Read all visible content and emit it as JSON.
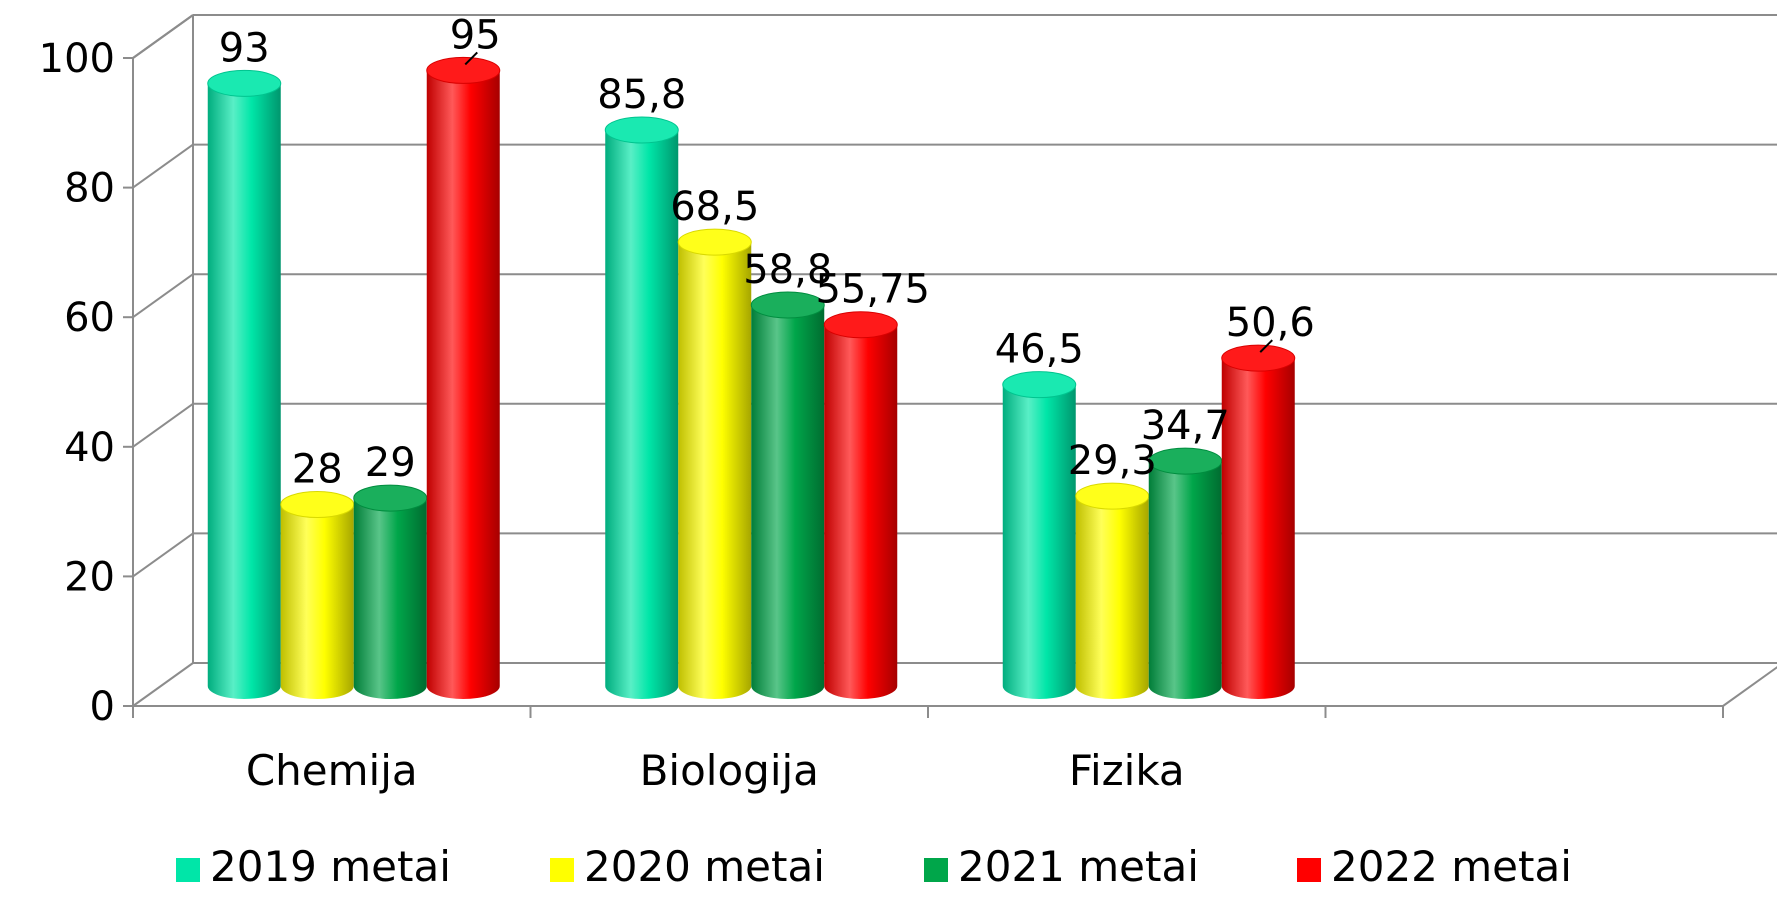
{
  "chart_data": {
    "type": "bar",
    "title": "",
    "xlabel": "",
    "ylabel": "",
    "ylim": [
      0,
      100
    ],
    "yticks": [
      "0",
      "20",
      "40",
      "60",
      "80",
      "100"
    ],
    "grid": true,
    "legend_position": "bottom",
    "categories": [
      "Chemija",
      "Biologija",
      "Fizika"
    ],
    "series": [
      {
        "name": "2019 metai",
        "color": "#00e6a8",
        "values": [
          93,
          85.8,
          46.5
        ],
        "labels": [
          "93",
          "85,8",
          "46,5"
        ]
      },
      {
        "name": "2020 metai",
        "color": "#ffff00",
        "values": [
          28,
          68.5,
          29.3
        ],
        "labels": [
          "28",
          "68,5",
          "29,3"
        ]
      },
      {
        "name": "2021 metai",
        "color": "#00a64a",
        "values": [
          29,
          58.8,
          34.7
        ],
        "labels": [
          "29",
          "58,8",
          "34,7"
        ]
      },
      {
        "name": "2022 metai",
        "color": "#ff0000",
        "values": [
          95,
          55.75,
          50.6
        ],
        "labels": [
          "95",
          "55,75",
          "50,6"
        ]
      }
    ]
  }
}
